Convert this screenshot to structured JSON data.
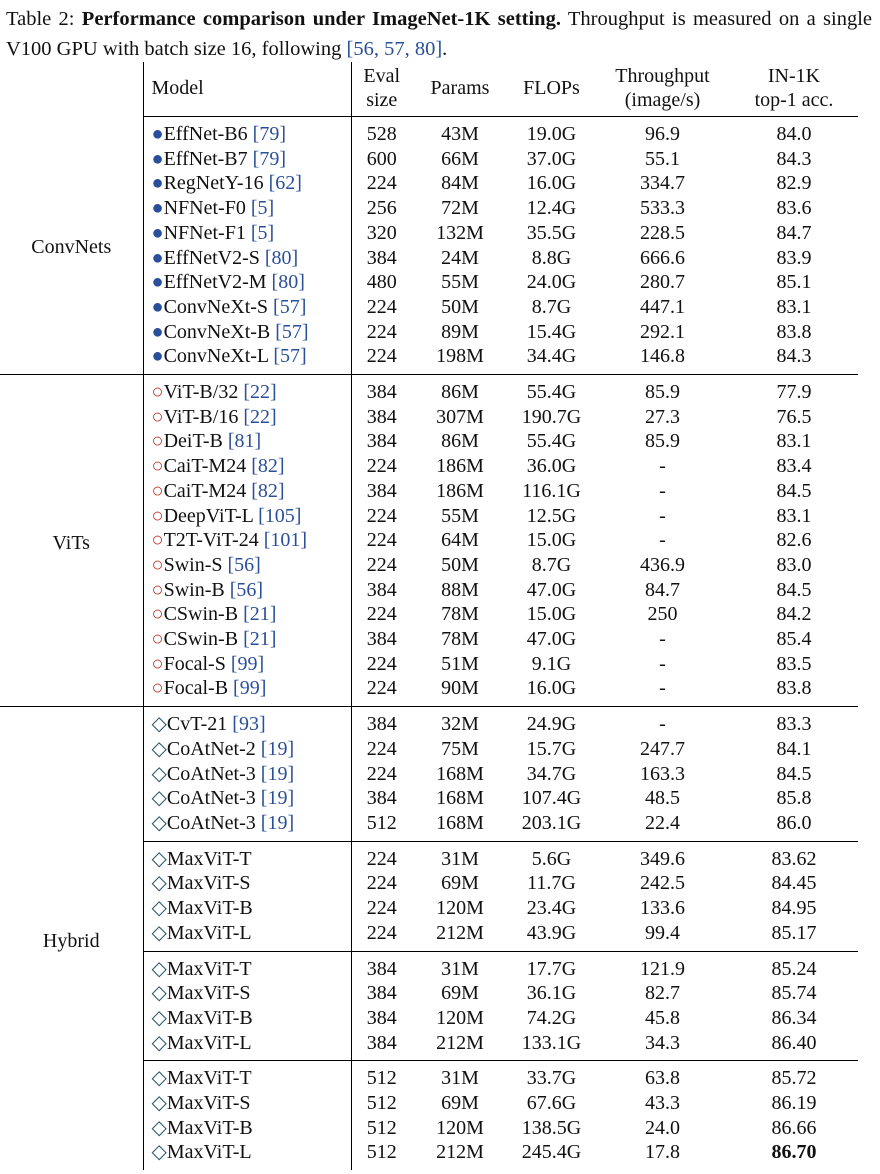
{
  "caption": {
    "label": "Table 2:",
    "bold": "Performance comparison under ImageNet-1K setting.",
    "text": "Throughput is measured on a single V100 GPU with batch size 16, following",
    "refs": "[56, 57, 80]",
    "end": "."
  },
  "header": [
    [
      "Model"
    ],
    [
      "Eval",
      "size"
    ],
    [
      "Params"
    ],
    [
      "FLOPs"
    ],
    [
      "Throughput",
      "(image/s)"
    ],
    [
      "IN-1K",
      "top-1 acc."
    ]
  ],
  "groups": [
    {
      "name": "ConvNets",
      "blocks": [
        [
          {
            "marker": "●",
            "model": "EffNet-B6",
            "ref": "[79]",
            "cells": [
              "528",
              "43M",
              "19.0G",
              "96.9",
              "84.0"
            ]
          },
          {
            "marker": "●",
            "model": "EffNet-B7",
            "ref": "[79]",
            "cells": [
              "600",
              "66M",
              "37.0G",
              "55.1",
              "84.3"
            ]
          },
          {
            "marker": "●",
            "model": "RegNetY-16",
            "ref": "[62]",
            "cells": [
              "224",
              "84M",
              "16.0G",
              "334.7",
              "82.9"
            ]
          },
          {
            "marker": "●",
            "model": "NFNet-F0",
            "ref": "[5]",
            "cells": [
              "256",
              "72M",
              "12.4G",
              "533.3",
              "83.6"
            ]
          },
          {
            "marker": "●",
            "model": "NFNet-F1",
            "ref": "[5]",
            "cells": [
              "320",
              "132M",
              "35.5G",
              "228.5",
              "84.7"
            ]
          },
          {
            "marker": "●",
            "model": "EffNetV2-S",
            "ref": "[80]",
            "cells": [
              "384",
              "24M",
              "8.8G",
              "666.6",
              "83.9"
            ]
          },
          {
            "marker": "●",
            "model": "EffNetV2-M",
            "ref": "[80]",
            "cells": [
              "480",
              "55M",
              "24.0G",
              "280.7",
              "85.1"
            ]
          },
          {
            "marker": "●",
            "model": "ConvNeXt-S",
            "ref": "[57]",
            "cells": [
              "224",
              "50M",
              "8.7G",
              "447.1",
              "83.1"
            ]
          },
          {
            "marker": "●",
            "model": "ConvNeXt-B",
            "ref": "[57]",
            "cells": [
              "224",
              "89M",
              "15.4G",
              "292.1",
              "83.8"
            ]
          },
          {
            "marker": "●",
            "model": "ConvNeXt-L",
            "ref": "[57]",
            "cells": [
              "224",
              "198M",
              "34.4G",
              "146.8",
              "84.3"
            ]
          }
        ]
      ]
    },
    {
      "name": "ViTs",
      "blocks": [
        [
          {
            "marker": "○",
            "model": "ViT-B/32",
            "ref": "[22]",
            "cells": [
              "384",
              "86M",
              "55.4G",
              "85.9",
              "77.9"
            ]
          },
          {
            "marker": "○",
            "model": "ViT-B/16",
            "ref": "[22]",
            "cells": [
              "384",
              "307M",
              "190.7G",
              "27.3",
              "76.5"
            ]
          },
          {
            "marker": "○",
            "model": "DeiT-B",
            "ref": "[81]",
            "cells": [
              "384",
              "86M",
              "55.4G",
              "85.9",
              "83.1"
            ]
          },
          {
            "marker": "○",
            "model": "CaiT-M24",
            "ref": "[82]",
            "cells": [
              "224",
              "186M",
              "36.0G",
              "-",
              "83.4"
            ]
          },
          {
            "marker": "○",
            "model": "CaiT-M24",
            "ref": "[82]",
            "cells": [
              "384",
              "186M",
              "116.1G",
              "-",
              "84.5"
            ]
          },
          {
            "marker": "○",
            "model": "DeepViT-L",
            "ref": "[105]",
            "cells": [
              "224",
              "55M",
              "12.5G",
              "-",
              "83.1"
            ]
          },
          {
            "marker": "○",
            "model": "T2T-ViT-24",
            "ref": "[101]",
            "cells": [
              "224",
              "64M",
              "15.0G",
              "-",
              "82.6"
            ]
          },
          {
            "marker": "○",
            "model": "Swin-S",
            "ref": "[56]",
            "cells": [
              "224",
              "50M",
              "8.7G",
              "436.9",
              "83.0"
            ]
          },
          {
            "marker": "○",
            "model": "Swin-B",
            "ref": "[56]",
            "cells": [
              "384",
              "88M",
              "47.0G",
              "84.7",
              "84.5"
            ]
          },
          {
            "marker": "○",
            "model": "CSwin-B",
            "ref": "[21]",
            "cells": [
              "224",
              "78M",
              "15.0G",
              "250",
              "84.2"
            ]
          },
          {
            "marker": "○",
            "model": "CSwin-B",
            "ref": "[21]",
            "cells": [
              "384",
              "78M",
              "47.0G",
              "-",
              "85.4"
            ]
          },
          {
            "marker": "○",
            "model": "Focal-S",
            "ref": "[99]",
            "cells": [
              "224",
              "51M",
              "9.1G",
              "-",
              "83.5"
            ]
          },
          {
            "marker": "○",
            "model": "Focal-B",
            "ref": "[99]",
            "cells": [
              "224",
              "90M",
              "16.0G",
              "-",
              "83.8"
            ]
          }
        ]
      ]
    },
    {
      "name": "Hybrid",
      "blocks": [
        [
          {
            "marker": "◇",
            "model": "CvT-21",
            "ref": "[93]",
            "cells": [
              "384",
              "32M",
              "24.9G",
              "-",
              "83.3"
            ]
          },
          {
            "marker": "◇",
            "model": "CoAtNet-2",
            "ref": "[19]",
            "cells": [
              "224",
              "75M",
              "15.7G",
              "247.7",
              "84.1"
            ]
          },
          {
            "marker": "◇",
            "model": "CoAtNet-3",
            "ref": "[19]",
            "cells": [
              "224",
              "168M",
              "34.7G",
              "163.3",
              "84.5"
            ]
          },
          {
            "marker": "◇",
            "model": "CoAtNet-3",
            "ref": "[19]",
            "cells": [
              "384",
              "168M",
              "107.4G",
              "48.5",
              "85.8"
            ]
          },
          {
            "marker": "◇",
            "model": "CoAtNet-3",
            "ref": "[19]",
            "cells": [
              "512",
              "168M",
              "203.1G",
              "22.4",
              "86.0"
            ]
          }
        ],
        [
          {
            "marker": "◇",
            "model": "MaxViT-T",
            "cells": [
              "224",
              "31M",
              "5.6G",
              "349.6",
              "83.62"
            ]
          },
          {
            "marker": "◇",
            "model": "MaxViT-S",
            "cells": [
              "224",
              "69M",
              "11.7G",
              "242.5",
              "84.45"
            ]
          },
          {
            "marker": "◇",
            "model": "MaxViT-B",
            "cells": [
              "224",
              "120M",
              "23.4G",
              "133.6",
              "84.95"
            ]
          },
          {
            "marker": "◇",
            "model": "MaxViT-L",
            "cells": [
              "224",
              "212M",
              "43.9G",
              "99.4",
              "85.17"
            ]
          }
        ],
        [
          {
            "marker": "◇",
            "model": "MaxViT-T",
            "cells": [
              "384",
              "31M",
              "17.7G",
              "121.9",
              "85.24"
            ]
          },
          {
            "marker": "◇",
            "model": "MaxViT-S",
            "cells": [
              "384",
              "69M",
              "36.1G",
              "82.7",
              "85.74"
            ]
          },
          {
            "marker": "◇",
            "model": "MaxViT-B",
            "cells": [
              "384",
              "120M",
              "74.2G",
              "45.8",
              "86.34"
            ]
          },
          {
            "marker": "◇",
            "model": "MaxViT-L",
            "cells": [
              "384",
              "212M",
              "133.1G",
              "34.3",
              "86.40"
            ]
          }
        ],
        [
          {
            "marker": "◇",
            "model": "MaxViT-T",
            "cells": [
              "512",
              "31M",
              "33.7G",
              "63.8",
              "85.72"
            ]
          },
          {
            "marker": "◇",
            "model": "MaxViT-S",
            "cells": [
              "512",
              "69M",
              "67.6G",
              "43.3",
              "86.19"
            ]
          },
          {
            "marker": "◇",
            "model": "MaxViT-B",
            "cells": [
              "512",
              "120M",
              "138.5G",
              "24.0",
              "86.66"
            ]
          },
          {
            "marker": "◇",
            "model": "MaxViT-L",
            "cells": [
              "512",
              "212M",
              "245.4G",
              "17.8",
              "86.70"
            ]
          }
        ]
      ]
    }
  ]
}
